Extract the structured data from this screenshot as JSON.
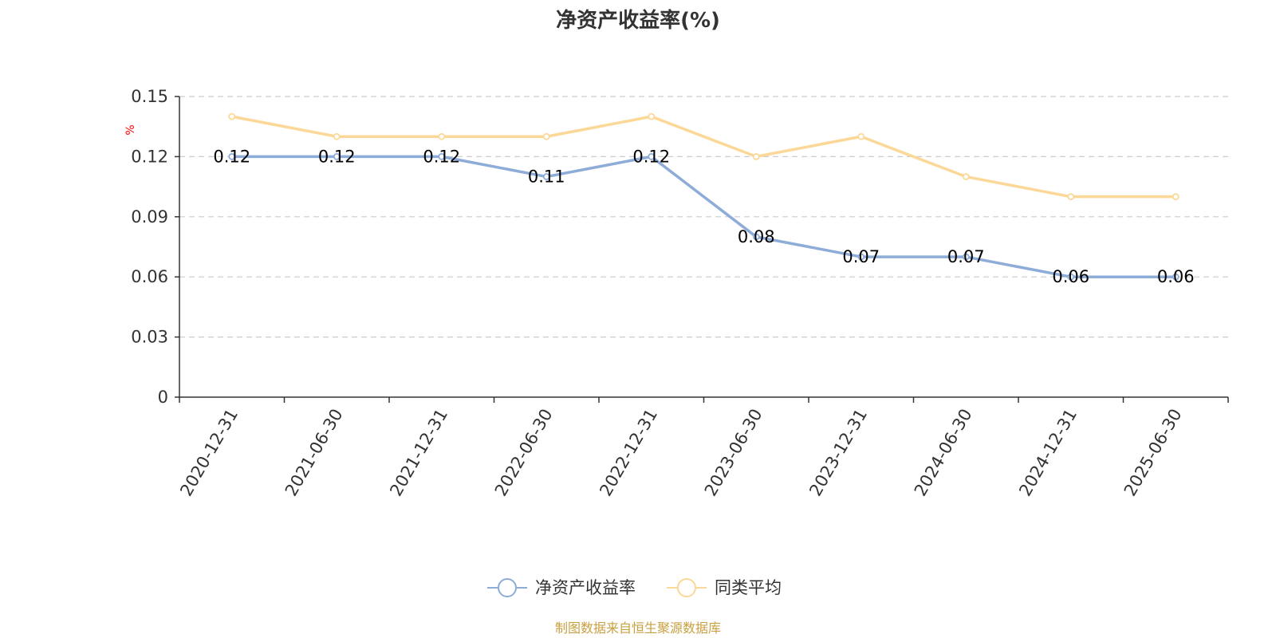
{
  "chart_data": {
    "type": "line",
    "title": "净资产收益率(%)",
    "ylabel": "%",
    "ylim": [
      0,
      0.15
    ],
    "yticks": [
      "0",
      "0.03",
      "0.06",
      "0.09",
      "0.12",
      "0.15"
    ],
    "categories": [
      "2020-12-31",
      "2021-06-30",
      "2021-12-31",
      "2022-06-30",
      "2022-12-31",
      "2023-06-30",
      "2023-12-31",
      "2024-06-30",
      "2024-12-31",
      "2025-06-30"
    ],
    "series": [
      {
        "name": "净资产收益率",
        "color": "#8eacd8",
        "values": [
          0.12,
          0.12,
          0.12,
          0.11,
          0.12,
          0.08,
          0.07,
          0.07,
          0.06,
          0.06
        ],
        "labels": [
          "0.12",
          "0.12",
          "0.12",
          "0.11",
          "0.12",
          "0.08",
          "0.07",
          "0.07",
          "0.06",
          "0.06"
        ]
      },
      {
        "name": "同类平均",
        "color": "#fcd898",
        "values": [
          0.14,
          0.13,
          0.13,
          0.13,
          0.14,
          0.12,
          0.13,
          0.11,
          0.1,
          0.1
        ]
      }
    ],
    "grid": "horizontal-dashed",
    "legend_position": "bottom"
  },
  "footer": {
    "source": "制图数据来自恒生聚源数据库"
  }
}
